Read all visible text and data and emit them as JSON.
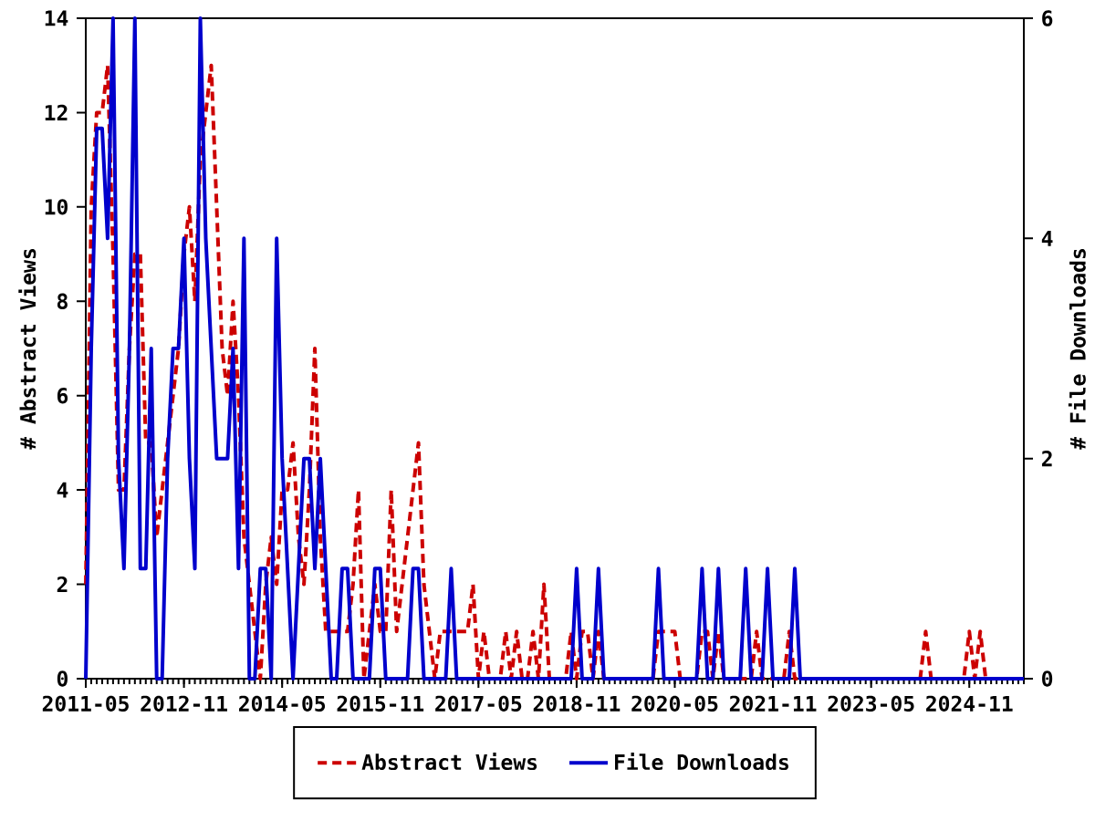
{
  "chart_data": {
    "type": "line",
    "ylabel": "# Abstract Views",
    "y2label": "# File Downloads",
    "xlim": [
      "2011-05",
      "2025-09"
    ],
    "xticks": [
      "2011-05",
      "2012-11",
      "2014-05",
      "2015-11",
      "2017-05",
      "2018-11",
      "2020-05",
      "2021-11",
      "2023-05",
      "2024-11"
    ],
    "ylim": [
      0,
      14
    ],
    "yticks": [
      0,
      2,
      4,
      6,
      8,
      10,
      12,
      14
    ],
    "y2lim": [
      0,
      6
    ],
    "y2ticks": [
      0,
      2,
      4,
      6
    ],
    "legend": "bottom",
    "series": [
      {
        "name": "Abstract Views",
        "color": "#cc0000",
        "line_style": "dashed",
        "x": [
          "2011-05",
          "2011-06",
          "2011-07",
          "2011-08",
          "2011-09",
          "2011-10",
          "2011-11",
          "2011-12",
          "2012-01",
          "2012-02",
          "2012-03",
          "2012-04",
          "2012-05",
          "2012-06",
          "2012-07",
          "2012-08",
          "2012-09",
          "2012-10",
          "2012-11",
          "2012-12",
          "2013-01",
          "2013-02",
          "2013-03",
          "2013-04",
          "2013-05",
          "2013-06",
          "2013-07",
          "2013-08",
          "2013-09",
          "2013-10",
          "2013-11",
          "2013-12",
          "2014-01",
          "2014-02",
          "2014-03",
          "2014-04",
          "2014-05",
          "2014-06",
          "2014-07",
          "2014-08",
          "2014-09",
          "2014-10",
          "2014-11",
          "2014-12",
          "2015-01",
          "2015-02",
          "2015-03",
          "2015-04",
          "2015-05",
          "2015-06",
          "2015-07",
          "2015-08",
          "2015-09",
          "2015-10",
          "2015-11",
          "2015-12",
          "2016-01",
          "2016-02",
          "2016-03",
          "2016-04",
          "2016-05",
          "2016-06",
          "2016-07",
          "2016-08",
          "2016-09",
          "2016-10",
          "2016-11",
          "2016-12",
          "2017-01",
          "2017-02",
          "2017-03",
          "2017-04",
          "2017-05",
          "2017-06",
          "2017-07",
          "2017-09",
          "2017-10",
          "2017-11",
          "2017-12",
          "2018-01",
          "2018-02",
          "2018-03",
          "2018-04",
          "2018-05",
          "2018-06",
          "2018-09",
          "2018-10",
          "2018-11",
          "2018-12",
          "2019-01",
          "2019-02",
          "2019-03",
          "2019-04",
          "2020-01",
          "2020-02",
          "2020-03",
          "2020-04",
          "2020-05",
          "2020-06",
          "2020-09",
          "2020-10",
          "2020-11",
          "2020-12",
          "2021-01",
          "2021-02",
          "2021-07",
          "2021-08",
          "2021-09",
          "2022-01",
          "2022-02",
          "2022-03",
          "2024-02",
          "2024-03",
          "2024-04",
          "2024-10",
          "2024-11",
          "2024-12",
          "2025-01",
          "2025-02",
          "2025-09"
        ],
        "values": [
          2,
          10,
          12,
          12,
          13,
          9,
          4,
          4,
          7,
          9,
          9,
          5,
          5,
          3,
          4,
          5,
          6,
          7,
          9,
          10,
          8,
          11,
          12,
          13,
          10,
          7,
          6,
          8,
          6,
          3,
          2,
          1,
          0,
          2,
          3,
          2,
          4,
          4,
          5,
          3,
          2,
          4,
          7,
          3,
          1,
          1,
          1,
          1,
          1,
          2,
          4,
          0,
          1,
          2,
          1,
          1,
          4,
          1,
          2,
          3,
          4,
          5,
          2,
          1,
          0,
          1,
          1,
          1,
          1,
          1,
          1,
          2,
          0,
          1,
          0,
          0,
          1,
          0,
          1,
          0,
          0,
          1,
          0,
          2,
          0,
          0,
          1,
          0,
          1,
          1,
          0,
          1,
          0,
          0,
          1,
          1,
          1,
          1,
          0,
          0,
          1,
          1,
          0,
          1,
          0,
          0,
          1,
          0,
          0,
          1,
          0,
          0,
          1,
          0,
          0,
          1,
          0,
          1,
          0,
          0
        ]
      },
      {
        "name": "File Downloads",
        "color": "#0000cc",
        "line_style": "solid",
        "axis": "y2",
        "x": [
          "2011-05",
          "2011-06",
          "2011-07",
          "2011-08",
          "2011-09",
          "2011-10",
          "2011-11",
          "2011-12",
          "2012-01",
          "2012-02",
          "2012-03",
          "2012-04",
          "2012-05",
          "2012-06",
          "2012-07",
          "2012-08",
          "2012-09",
          "2012-10",
          "2012-11",
          "2012-12",
          "2013-01",
          "2013-02",
          "2013-03",
          "2013-04",
          "2013-05",
          "2013-06",
          "2013-07",
          "2013-08",
          "2013-09",
          "2013-10",
          "2013-11",
          "2013-12",
          "2014-01",
          "2014-02",
          "2014-03",
          "2014-04",
          "2014-05",
          "2014-06",
          "2014-07",
          "2014-08",
          "2014-09",
          "2014-10",
          "2014-11",
          "2014-12",
          "2015-01",
          "2015-02",
          "2015-03",
          "2015-04",
          "2015-05",
          "2015-06",
          "2015-07",
          "2015-08",
          "2015-09",
          "2015-10",
          "2015-11",
          "2015-12",
          "2016-04",
          "2016-05",
          "2016-06",
          "2016-07",
          "2016-11",
          "2016-12",
          "2017-01",
          "2018-10",
          "2018-11",
          "2018-12",
          "2019-02",
          "2019-03",
          "2019-04",
          "2020-01",
          "2020-02",
          "2020-03",
          "2020-09",
          "2020-10",
          "2020-11",
          "2020-12",
          "2021-01",
          "2021-02",
          "2021-05",
          "2021-06",
          "2021-07",
          "2021-09",
          "2021-10",
          "2021-11",
          "2022-02",
          "2022-03",
          "2022-04",
          "2025-09"
        ],
        "values": [
          0,
          3,
          5,
          5,
          4,
          6,
          2,
          1,
          3,
          6,
          1,
          1,
          3,
          0,
          0,
          2,
          3,
          3,
          4,
          2,
          1,
          6,
          4,
          3,
          2,
          2,
          2,
          3,
          1,
          4,
          0,
          0,
          1,
          1,
          0,
          4,
          2,
          1,
          0,
          1,
          2,
          2,
          1,
          2,
          1,
          0,
          0,
          1,
          1,
          0,
          0,
          0,
          0,
          1,
          1,
          0,
          0,
          1,
          1,
          0,
          0,
          1,
          0,
          0,
          1,
          0,
          0,
          1,
          0,
          0,
          1,
          0,
          0,
          1,
          0,
          0,
          1,
          0,
          0,
          1,
          0,
          0,
          1,
          0,
          0,
          1,
          0,
          0
        ]
      }
    ]
  }
}
